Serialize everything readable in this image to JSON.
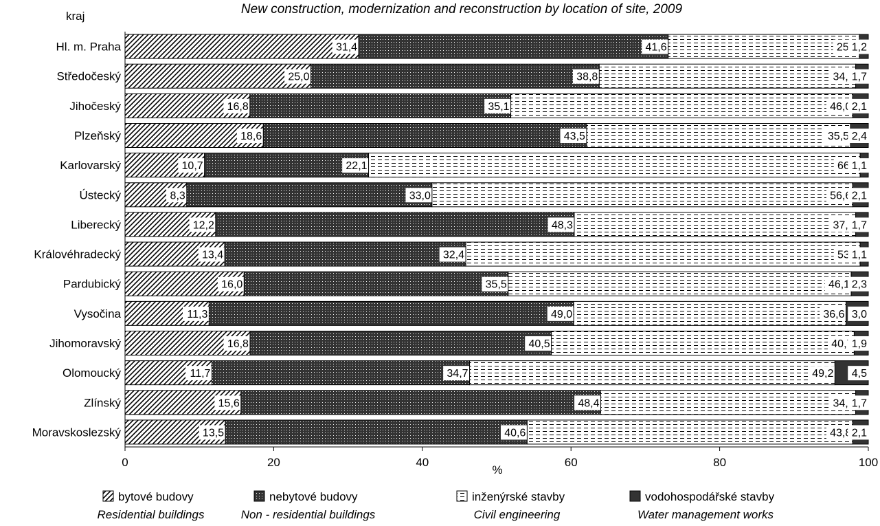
{
  "chart_data": {
    "type": "bar",
    "orientation": "horizontal",
    "stacked": "percent",
    "title": "New construction, modernization and reconstruction by location of site, 2009",
    "category_axis_label": "kraj",
    "xlabel": "%",
    "xlim": [
      0,
      100
    ],
    "xticks": [
      "0",
      "20",
      "40",
      "60",
      "80",
      "100"
    ],
    "grid": false,
    "legend_position": "bottom",
    "categories": [
      "Hl. m. Praha",
      "Středočeský",
      "Jihočeský",
      "Plzeňský",
      "Karlovarský",
      "Ústecký",
      "Liberecký",
      "Královéhradecký",
      "Pardubický",
      "Vysočina",
      "Jihomoravský",
      "Olomoucký",
      "Zlínský",
      "Moravskoslezský"
    ],
    "series": [
      {
        "key": "residential",
        "name": "bytové budovy",
        "name_en": "Residential buildings",
        "pattern": "diagonal-hatch",
        "values": [
          31.4,
          25.0,
          16.8,
          18.6,
          10.7,
          8.3,
          12.2,
          13.4,
          16.0,
          11.3,
          16.8,
          11.7,
          15.6,
          13.5
        ],
        "labels": [
          "31,4",
          "25,0",
          "16,8",
          "18,6",
          "10,7",
          "8,3",
          "12,2",
          "13,4",
          "16,0",
          "11,3",
          "16,8",
          "11,7",
          "15,6",
          "13,5"
        ]
      },
      {
        "key": "nonresidential",
        "name": "nebytové budovy",
        "name_en": "Non - residential buildings",
        "pattern": "dark-dotted",
        "values": [
          41.6,
          38.8,
          35.1,
          43.5,
          22.1,
          33.0,
          48.3,
          32.4,
          35.5,
          49.0,
          40.5,
          34.7,
          48.4,
          40.6
        ],
        "labels": [
          "41,6",
          "38,8",
          "35,1",
          "43,5",
          "22,1",
          "33,0",
          "48,3",
          "32,4",
          "35,5",
          "49,0",
          "40,5",
          "34,7",
          "48,4",
          "40,6"
        ]
      },
      {
        "key": "civil",
        "name": "inženýrské stavby",
        "name_en": "Civil engineering",
        "pattern": "dashed-lines",
        "values": [
          25.7,
          34.5,
          46.0,
          35.5,
          66.2,
          56.6,
          37.9,
          53.0,
          46.1,
          36.6,
          40.7,
          49.2,
          34.3,
          43.8
        ],
        "labels": [
          "25,7",
          "34,5",
          "46,0",
          "35,5",
          "66,2",
          "56,6",
          "37,9",
          "53,0",
          "46,1",
          "36,6",
          "40,7",
          "49,2",
          "34,3",
          "43,8"
        ]
      },
      {
        "key": "water",
        "name": "vodohospodářské stavby",
        "name_en": "Water management works",
        "pattern": "solid-dark",
        "values": [
          1.2,
          1.7,
          2.1,
          2.4,
          1.1,
          2.1,
          1.7,
          1.1,
          2.3,
          3.0,
          1.9,
          4.5,
          1.7,
          2.1
        ],
        "labels": [
          "1,2",
          "1,7",
          "2,1",
          "2,4",
          "1,1",
          "2,1",
          "1,7",
          "1,1",
          "2,3",
          "3,0",
          "1,9",
          "4,5",
          "1,7",
          "2,1"
        ]
      }
    ],
    "colors": {
      "solid": "#333333",
      "dots": "#ffffff",
      "stroke": "#000000"
    }
  }
}
